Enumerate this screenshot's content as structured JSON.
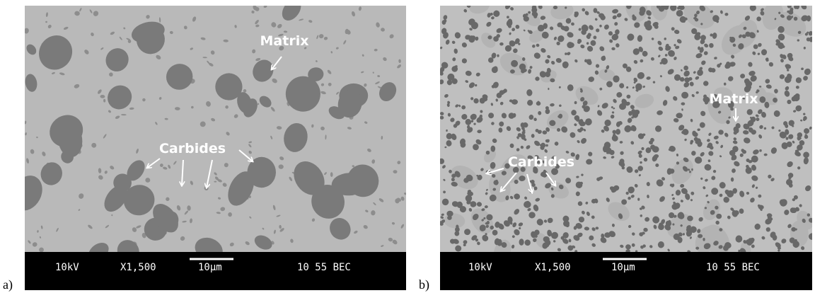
{
  "panels": [
    {
      "label": "a)",
      "annotations": [
        "Matrix",
        "Carbides"
      ],
      "info_bar": {
        "voltage": "10kV",
        "magnification": "X1,500",
        "scale": "10µm",
        "code": "10 55 BEC"
      }
    },
    {
      "label": "b)",
      "annotations": [
        "Matrix",
        "Carbides"
      ],
      "info_bar": {
        "voltage": "10kV",
        "magnification": "X1,500",
        "scale": "10µm",
        "code": "10 55 BEC"
      }
    }
  ]
}
